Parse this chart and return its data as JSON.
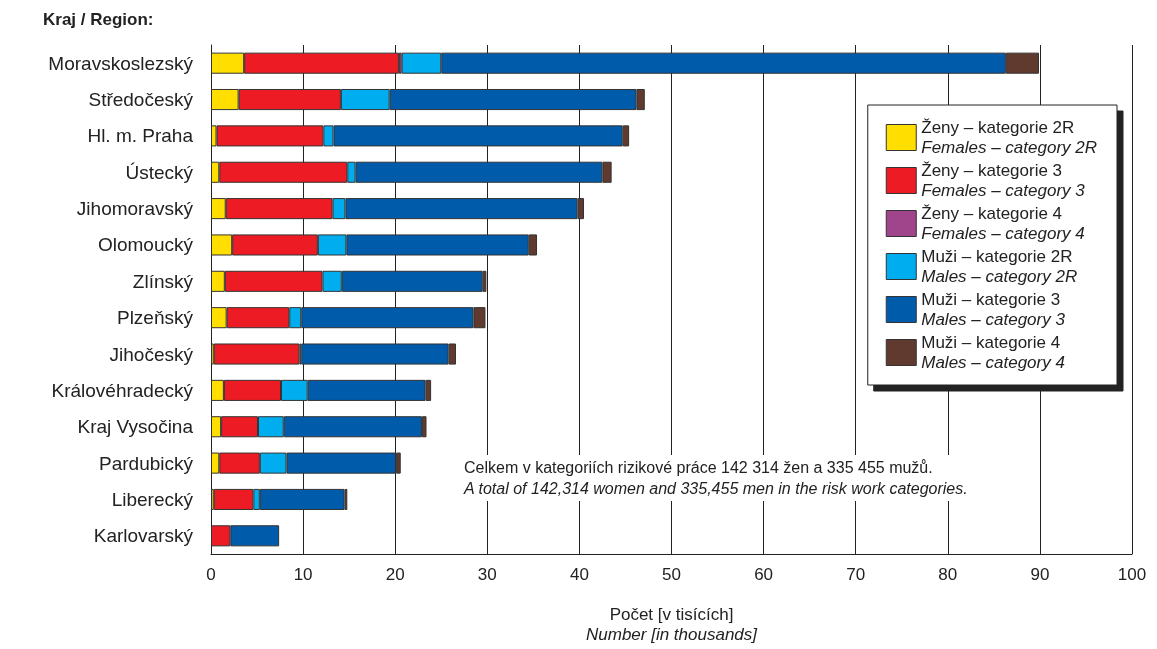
{
  "chart_data": {
    "type": "bar",
    "orientation": "horizontal",
    "stacked": true,
    "title": "Kraj / Region:",
    "xlabel": "Počet [v tisících]\nNumber [in thousands]",
    "categories": [
      "Moravskoslezský",
      "Středočeský",
      "Hl. m. Praha",
      "Ústecký",
      "Jihomoravský",
      "Olomoucký",
      "Zlínský",
      "Plzeňský",
      "Jihočeský",
      "Královéhradecký",
      "Kraj Vysočina",
      "Pardubický",
      "Liberecký",
      "Karlovarský"
    ],
    "series": [
      {
        "name": "Ženy – kategorie 2R\nFemales – category 2R",
        "color": "#ffde00",
        "values": [
          3.6,
          3.0,
          0.6,
          0.9,
          1.6,
          2.3,
          1.5,
          1.7,
          0.3,
          1.4,
          1.1,
          0.9,
          0.3,
          null
        ]
      },
      {
        "name": "Ženy – kategorie 3\nFemales – category 3",
        "color": "#ed1c24",
        "values": [
          16.8,
          11.1,
          11.6,
          13.9,
          11.6,
          9.3,
          10.6,
          6.8,
          9.3,
          6.2,
          4.0,
          4.4,
          4.3,
          2.1
        ]
      },
      {
        "name": "Ženy – kategorie 4\nFemales – category 4",
        "color": "#a0448c",
        "values": [
          0.3,
          null,
          null,
          null,
          null,
          null,
          null,
          null,
          null,
          null,
          null,
          null,
          null,
          null
        ]
      },
      {
        "name": "Muži – kategorie 2R\nMales – category 2R",
        "color": "#00aeef",
        "values": [
          4.3,
          5.3,
          1.1,
          0.9,
          1.4,
          3.1,
          2.1,
          1.3,
          0.2,
          2.9,
          2.8,
          2.9,
          0.7,
          null
        ]
      },
      {
        "name": "Muži – kategorie 3\nMales – category 3",
        "color": "#005bab",
        "values": [
          61.3,
          26.8,
          31.4,
          26.8,
          25.2,
          19.8,
          15.3,
          18.7,
          16.0,
          12.8,
          15.0,
          11.9,
          9.2,
          5.3
        ]
      },
      {
        "name": "Muži – kategorie 4\nMales – category 4",
        "color": "#603a2e",
        "values": [
          3.6,
          0.9,
          0.7,
          1.0,
          0.7,
          0.9,
          0.4,
          1.3,
          0.8,
          0.6,
          0.5,
          0.5,
          0.3,
          null
        ]
      }
    ],
    "xlim": [
      0,
      100
    ],
    "xticks": [
      0,
      10,
      20,
      30,
      40,
      50,
      60,
      70,
      80,
      90,
      100
    ],
    "grid": "x",
    "legend": "right",
    "annotations": [
      "Celkem v kategoriích rizikové práce 142 314 žen a 335 455 mužů.\nA total of 142,314 women and 335,455 men in the risk work categories."
    ]
  }
}
